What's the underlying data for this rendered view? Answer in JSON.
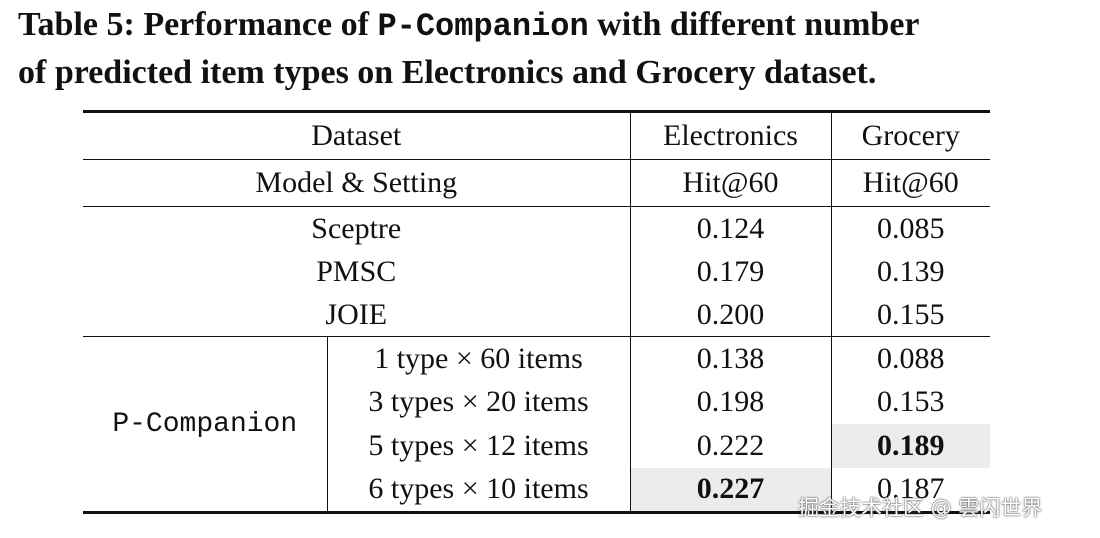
{
  "title": [
    "Table 5: Performance of ",
    "P-Companion",
    " with different number",
    "of predicted item types on Electronics and Grocery dataset."
  ],
  "table": {
    "header": [
      "Dataset",
      "Electronics",
      "Grocery"
    ],
    "subheader": [
      "Model & Setting",
      "Hit@60",
      "Hit@60"
    ],
    "baselines": [
      [
        "Sceptre",
        "0.124",
        "0.085"
      ],
      [
        "PMSC",
        "0.179",
        "0.139"
      ],
      [
        "JOIE",
        "0.200",
        "0.155"
      ]
    ],
    "group": {
      "label": "P-Companion",
      "rows": [
        [
          "1 type × 60 items",
          "0.138",
          "0.088"
        ],
        [
          "3 types × 20 items",
          "0.198",
          "0.153"
        ],
        [
          "5 types × 12 items",
          "0.222",
          "0.189"
        ],
        [
          "6 types × 10 items",
          "0.227",
          "0.187"
        ]
      ]
    }
  },
  "watermark": "掘金技术社区 @ 雲闪世界"
}
